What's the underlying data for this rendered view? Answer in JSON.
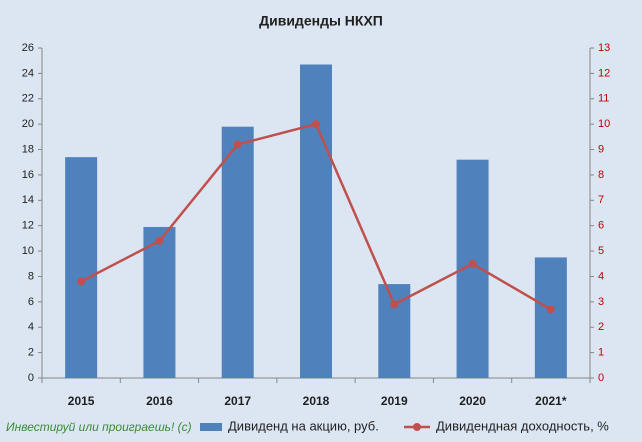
{
  "chart_data": {
    "type": "bar_line",
    "title": "Дивиденды НКХП",
    "categories": [
      "2015",
      "2016",
      "2017",
      "2018",
      "2019",
      "2020",
      "2021*"
    ],
    "series": [
      {
        "name": "Дивиденд на акцию, руб.",
        "type": "bar",
        "color": "#4f81bd",
        "values": [
          17.4,
          11.9,
          19.8,
          24.7,
          7.4,
          17.2,
          9.5
        ]
      },
      {
        "name": "Дивидендная доходность, %",
        "type": "line",
        "axis": "y2",
        "color": "#c0504d",
        "values": [
          3.8,
          5.4,
          9.2,
          10.0,
          2.9,
          4.5,
          2.7
        ]
      }
    ],
    "ylim": [
      0,
      26
    ],
    "yticks": [
      0,
      2,
      4,
      6,
      8,
      10,
      12,
      14,
      16,
      18,
      20,
      22,
      24,
      26
    ],
    "y2lim": [
      0,
      13
    ],
    "y2ticks": [
      0,
      1,
      2,
      3,
      4,
      5,
      6,
      7,
      8,
      9,
      10,
      11,
      12,
      13
    ],
    "y2tick_color": "#c00000",
    "grid": false,
    "legend": "bottom",
    "watermark": "Инвестируй или проиграешь! (с)"
  }
}
